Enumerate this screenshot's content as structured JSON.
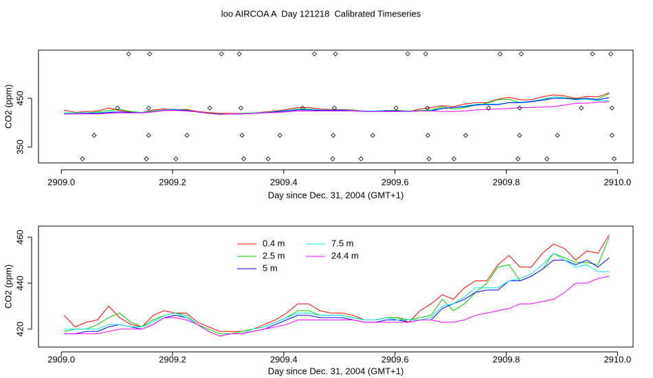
{
  "chart_data": [
    {
      "type": "line",
      "title": "loo AIRCOA A  Day 121218  Calibrated Timeseries",
      "xlabel": "Day since Dec. 31, 2004 (GMT+1)",
      "ylabel": "CO2 (ppm)",
      "xlim": [
        2908.959,
        2910.028
      ],
      "ylim": [
        317.6,
        548.6
      ],
      "xticks": [
        {
          "value": 2909,
          "label": "2909.0"
        },
        2909.2,
        2909.4,
        2909.6,
        2909.8,
        {
          "value": 2910,
          "label": "2910.0"
        }
      ],
      "yticks": [
        350,
        450
      ],
      "x": [
        2909.005,
        2909.025,
        2909.045,
        2909.065,
        2909.085,
        2909.105,
        2909.125,
        2909.145,
        2909.165,
        2909.185,
        2909.205,
        2909.225,
        2909.245,
        2909.265,
        2909.285,
        2909.305,
        2909.325,
        2909.345,
        2909.365,
        2909.385,
        2909.405,
        2909.425,
        2909.445,
        2909.465,
        2909.485,
        2909.505,
        2909.525,
        2909.545,
        2909.565,
        2909.585,
        2909.605,
        2909.625,
        2909.645,
        2909.665,
        2909.685,
        2909.705,
        2909.725,
        2909.745,
        2909.765,
        2909.785,
        2909.805,
        2909.825,
        2909.845,
        2909.865,
        2909.885,
        2909.905,
        2909.925,
        2909.945,
        2909.965,
        2909.985
      ],
      "series": [
        {
          "color": "#ff0000",
          "values": [
            426,
            421,
            423,
            424,
            430,
            425,
            422,
            421,
            426,
            428,
            427,
            427,
            423,
            421,
            419,
            419,
            419,
            420,
            422,
            424,
            427,
            431,
            431,
            428,
            427,
            427,
            426,
            424,
            424,
            425,
            425,
            423,
            428,
            431,
            435,
            433,
            438,
            441,
            441,
            448,
            452,
            447,
            447,
            453,
            457,
            455,
            450,
            454,
            453,
            461
          ]
        },
        {
          "color": "#00cd00",
          "values": [
            419,
            420,
            420,
            422,
            425,
            427,
            423,
            421,
            424,
            426,
            427,
            426,
            422,
            420,
            418,
            418,
            419,
            420,
            421,
            423,
            425,
            428,
            428,
            426,
            426,
            426,
            425,
            424,
            424,
            425,
            425,
            424,
            425,
            426,
            433,
            428,
            431,
            436,
            440,
            447,
            448,
            441,
            443,
            446,
            453,
            451,
            449,
            449,
            448,
            460
          ]
        },
        {
          "color": "#00e5e5",
          "values": [
            420,
            420,
            420,
            420,
            422,
            422,
            421,
            421,
            423,
            426,
            427,
            425,
            422,
            419,
            417,
            418,
            418,
            420,
            421,
            423,
            425,
            427,
            427,
            426,
            426,
            426,
            425,
            424,
            424,
            425,
            424,
            424,
            424,
            425,
            430,
            431,
            434,
            438,
            438,
            438,
            441,
            442,
            444,
            448,
            453,
            450,
            447,
            448,
            445,
            445
          ]
        },
        {
          "color": "#0000ff",
          "values": [
            418,
            418,
            419,
            419,
            421,
            422,
            421,
            420,
            422,
            425,
            426,
            425,
            422,
            419,
            417,
            418,
            418,
            419,
            420,
            422,
            424,
            426,
            426,
            425,
            425,
            425,
            424,
            423,
            423,
            424,
            424,
            423,
            424,
            424,
            429,
            431,
            433,
            436,
            437,
            437,
            441,
            441,
            443,
            446,
            450,
            450,
            448,
            450,
            447,
            451
          ]
        },
        {
          "color": "#ff00ff",
          "values": [
            418,
            418,
            418,
            418,
            419,
            420,
            420,
            420,
            422,
            425,
            425,
            424,
            422,
            419,
            417,
            418,
            418,
            419,
            420,
            421,
            422,
            424,
            424,
            424,
            424,
            424,
            424,
            423,
            423,
            423,
            423,
            423,
            424,
            424,
            423,
            423,
            424,
            426,
            427,
            428,
            429,
            431,
            431,
            432,
            433,
            436,
            440,
            440,
            442,
            443
          ]
        }
      ],
      "points": {
        "x": [
          2909.121,
          2909.159,
          2909.288,
          2909.32,
          2909.455,
          2909.493,
          2909.623,
          2909.655,
          2909.789,
          2909.827,
          2909.955,
          2909.988,
          2909.101,
          2909.157,
          2909.267,
          2909.323,
          2909.434,
          2909.491,
          2909.602,
          2909.658,
          2909.768,
          2909.824,
          2909.935,
          2909.99,
          2909.059,
          2909.157,
          2909.226,
          2909.325,
          2909.393,
          2909.489,
          2909.56,
          2909.659,
          2909.727,
          2909.824,
          2909.892,
          2909.99,
          2909.038,
          2909.153,
          2909.206,
          2909.328,
          2909.372,
          2909.488,
          2909.539,
          2909.661,
          2909.706,
          2909.821,
          2909.873,
          2909.994
        ],
        "values": [
          541,
          541,
          541,
          541,
          541,
          541,
          541,
          541,
          541,
          541,
          541,
          541,
          430,
          430,
          430,
          430,
          430,
          430,
          430,
          430,
          430,
          430,
          430,
          430,
          374,
          374,
          374,
          374,
          374,
          374,
          374,
          374,
          374,
          374,
          374,
          374,
          326,
          326,
          326,
          326,
          326,
          326,
          326,
          326,
          326,
          326,
          326,
          326
        ]
      }
    },
    {
      "type": "line",
      "xlabel": "Day since Dec. 31, 2004 (GMT+1)",
      "ylabel": "CO2 (ppm)",
      "xlim": [
        2908.959,
        2910.028
      ],
      "ylim": [
        412.2,
        464.8
      ],
      "xticks": [
        {
          "value": 2909,
          "label": "2909.0"
        },
        2909.2,
        2909.4,
        2909.6,
        2909.8,
        {
          "value": 2910,
          "label": "2910.0"
        }
      ],
      "yticks": [
        420,
        440,
        460
      ],
      "x": [
        2909.005,
        2909.025,
        2909.045,
        2909.065,
        2909.085,
        2909.105,
        2909.125,
        2909.145,
        2909.165,
        2909.185,
        2909.205,
        2909.225,
        2909.245,
        2909.265,
        2909.285,
        2909.305,
        2909.325,
        2909.345,
        2909.365,
        2909.385,
        2909.405,
        2909.425,
        2909.445,
        2909.465,
        2909.485,
        2909.505,
        2909.525,
        2909.545,
        2909.565,
        2909.585,
        2909.605,
        2909.625,
        2909.645,
        2909.665,
        2909.685,
        2909.705,
        2909.725,
        2909.745,
        2909.765,
        2909.785,
        2909.805,
        2909.825,
        2909.845,
        2909.865,
        2909.885,
        2909.905,
        2909.925,
        2909.945,
        2909.965,
        2909.985
      ],
      "legend": "top",
      "series": [
        {
          "name": "0.4 m",
          "color": "#ff0000",
          "values": [
            426,
            421,
            423,
            424,
            430,
            425,
            422,
            421,
            426,
            428,
            427,
            427,
            423,
            421,
            419,
            419,
            419,
            420,
            422,
            424,
            427,
            431,
            431,
            428,
            427,
            427,
            426,
            424,
            424,
            425,
            425,
            423,
            428,
            431,
            435,
            433,
            438,
            441,
            441,
            448,
            452,
            447,
            447,
            453,
            457,
            455,
            450,
            454,
            453,
            461
          ]
        },
        {
          "name": "2.5 m",
          "color": "#00cd00",
          "values": [
            419,
            420,
            420,
            422,
            425,
            427,
            423,
            421,
            424,
            426,
            427,
            426,
            422,
            420,
            418,
            418,
            419,
            420,
            421,
            423,
            425,
            428,
            428,
            426,
            426,
            426,
            425,
            424,
            424,
            425,
            425,
            424,
            425,
            426,
            433,
            428,
            431,
            436,
            440,
            447,
            448,
            441,
            443,
            446,
            453,
            451,
            449,
            449,
            448,
            460
          ]
        },
        {
          "name": "5 m",
          "color": "#0000ff",
          "values": [
            418,
            418,
            419,
            419,
            421,
            422,
            421,
            420,
            422,
            425,
            426,
            425,
            422,
            419,
            417,
            418,
            418,
            419,
            420,
            422,
            424,
            426,
            426,
            425,
            425,
            425,
            424,
            423,
            423,
            424,
            424,
            423,
            424,
            424,
            429,
            431,
            433,
            436,
            437,
            437,
            441,
            441,
            443,
            446,
            450,
            450,
            448,
            450,
            447,
            451
          ]
        },
        {
          "name": "7.5 m",
          "color": "#00e5e5",
          "values": [
            420,
            420,
            420,
            420,
            422,
            422,
            421,
            421,
            423,
            426,
            427,
            425,
            422,
            419,
            417,
            418,
            418,
            420,
            421,
            423,
            425,
            427,
            427,
            426,
            426,
            426,
            425,
            424,
            424,
            425,
            424,
            424,
            424,
            425,
            430,
            431,
            434,
            438,
            438,
            438,
            441,
            442,
            444,
            448,
            453,
            450,
            447,
            448,
            445,
            445
          ]
        },
        {
          "name": "24.4 m",
          "color": "#ff00ff",
          "values": [
            418,
            418,
            418,
            418,
            419,
            420,
            420,
            420,
            422,
            425,
            425,
            424,
            422,
            419,
            417,
            418,
            418,
            419,
            420,
            421,
            422,
            424,
            424,
            424,
            424,
            424,
            424,
            423,
            423,
            423,
            423,
            423,
            424,
            424,
            423,
            423,
            424,
            426,
            427,
            428,
            429,
            431,
            431,
            432,
            433,
            436,
            440,
            440,
            442,
            443
          ]
        }
      ]
    }
  ]
}
